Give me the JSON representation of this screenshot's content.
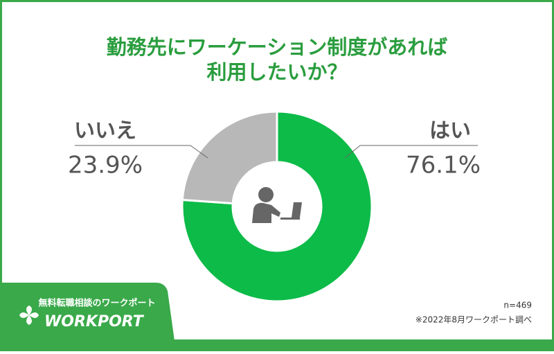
{
  "chart_data": {
    "type": "pie",
    "title": [
      "勤務先にワーケーション制度があれば",
      "利用したいか？"
    ],
    "categories": [
      "はい",
      "いいえ"
    ],
    "values": [
      76.1,
      23.9
    ],
    "value_labels": [
      "76.1%",
      "23.9%"
    ],
    "colors": [
      "#0dbb48",
      "#b8b8b8"
    ],
    "donut": true,
    "note": "n=469",
    "source": "※2022年8月ワークポート調べ"
  },
  "banner": {
    "tagline": "無料転職相談のワークポート",
    "logo": "WORKPORT"
  }
}
